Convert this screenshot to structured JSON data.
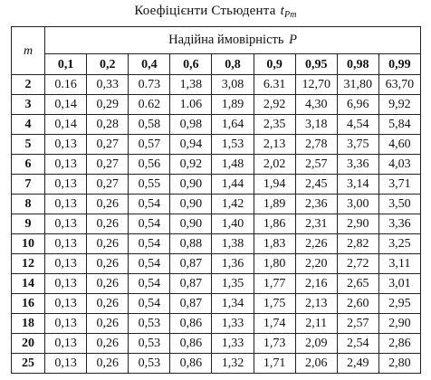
{
  "title": {
    "text": "Коефіцієнти Стьюдента",
    "symbol_base": "t",
    "symbol_sub": "Pm"
  },
  "table": {
    "row_header": "m",
    "span_header_text": "Надійна ймовірність",
    "span_header_var": "P",
    "probabilities": [
      "0,1",
      "0,2",
      "0,4",
      "0,6",
      "0,8",
      "0,9",
      "0,95",
      "0,98",
      "0,99"
    ],
    "rows": [
      {
        "m": "2",
        "values": [
          "0.16",
          "0,33",
          "0.73",
          "1,38",
          "3,08",
          "6.31",
          "12,70",
          "31,80",
          "63,70"
        ]
      },
      {
        "m": "3",
        "values": [
          "0,14",
          "0,29",
          "0.62",
          "1.06",
          "1,89",
          "2,92",
          "4,30",
          "6,96",
          "9,92"
        ]
      },
      {
        "m": "4",
        "values": [
          "0,14",
          "0,28",
          "0,58",
          "0,98",
          "1,64",
          "2,35",
          "3,18",
          "4,54",
          "5,84"
        ]
      },
      {
        "m": "5",
        "values": [
          "0,13",
          "0,27",
          "0,57",
          "0,94",
          "1,53",
          "2,13",
          "2,78",
          "3,75",
          "4,60"
        ]
      },
      {
        "m": "6",
        "values": [
          "0,13",
          "0,27",
          "0,56",
          "0,92",
          "1,48",
          "2,02",
          "2,57",
          "3,36",
          "4,03"
        ]
      },
      {
        "m": "7",
        "values": [
          "0,13",
          "0,27",
          "0,55",
          "0,90",
          "1,44",
          "1,94",
          "2,45",
          "3,14",
          "3,71"
        ]
      },
      {
        "m": "8",
        "values": [
          "0,13",
          "0,26",
          "0,54",
          "0,90",
          "1,42",
          "1,89",
          "2,36",
          "3,00",
          "3,50"
        ]
      },
      {
        "m": "9",
        "values": [
          "0,13",
          "0,26",
          "0,54",
          "0,90",
          "1,40",
          "1,86",
          "2,31",
          "2,90",
          "3,36"
        ]
      },
      {
        "m": "10",
        "values": [
          "0,13",
          "0,26",
          "0,54",
          "0,88",
          "1,38",
          "1,83",
          "2,26",
          "2,82",
          "3,25"
        ]
      },
      {
        "m": "12",
        "values": [
          "0,13",
          "0,26",
          "0,54",
          "0,87",
          "1,36",
          "1,80",
          "2,20",
          "2,72",
          "3,11"
        ]
      },
      {
        "m": "14",
        "values": [
          "0,13",
          "0,26",
          "0,54",
          "0,87",
          "1,35",
          "1,77",
          "2,16",
          "2,65",
          "3,01"
        ]
      },
      {
        "m": "16",
        "values": [
          "0,13",
          "0,26",
          "0,54",
          "0,87",
          "1,34",
          "1,75",
          "2,13",
          "2,60",
          "2,95"
        ]
      },
      {
        "m": "18",
        "values": [
          "0,13",
          "0,26",
          "0,53",
          "0,86",
          "1,33",
          "1,74",
          "2,11",
          "2,57",
          "2,90"
        ]
      },
      {
        "m": "20",
        "values": [
          "0,13",
          "0,26",
          "0,53",
          "0,86",
          "1,33",
          "1,73",
          "2,09",
          "2,54",
          "2,86"
        ]
      },
      {
        "m": "25",
        "values": [
          "0,13",
          "0,26",
          "0,53",
          "0,86",
          "1,32",
          "1,71",
          "2,06",
          "2,49",
          "2,80"
        ]
      }
    ]
  }
}
